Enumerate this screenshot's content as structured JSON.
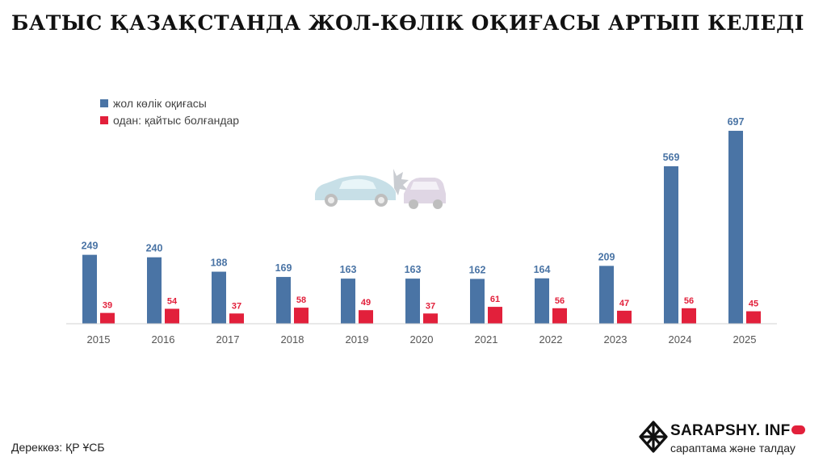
{
  "title": "БАТЫС ҚАЗАҚСТАНДА ЖОЛ-КӨЛІК ОҚИҒАСЫ АРТЫП КЕЛЕДІ",
  "source": "Дереккөз: ҚР ҰСБ",
  "brand": {
    "name": "SARAPSHY. INF",
    "tagline": "сараптама және талдау",
    "logo_icon": "knot-logo-icon"
  },
  "illustration_icon": "car-crash-icon",
  "colors": {
    "series_a": "#4a74a5",
    "series_b": "#e2203b",
    "axis": "#d0d0d0"
  },
  "chart_data": {
    "type": "bar",
    "title": "БАТЫС ҚАЗАҚСТАНДА ЖОЛ-КӨЛІК ОҚИҒАСЫ АРТЫП КЕЛЕДІ",
    "categories": [
      "2015",
      "2016",
      "2017",
      "2018",
      "2019",
      "2020",
      "2021",
      "2022",
      "2023",
      "2024",
      "2025"
    ],
    "series": [
      {
        "name": "жол көлік оқиғасы",
        "values": [
          249,
          240,
          188,
          169,
          163,
          163,
          162,
          164,
          209,
          569,
          697
        ]
      },
      {
        "name": "одан: қайтыс болғандар",
        "values": [
          39,
          54,
          37,
          58,
          49,
          37,
          61,
          56,
          47,
          56,
          45
        ]
      }
    ],
    "ylim": [
      0,
      700
    ],
    "grid": false,
    "data_labels": true,
    "legend_position": "top-left"
  }
}
